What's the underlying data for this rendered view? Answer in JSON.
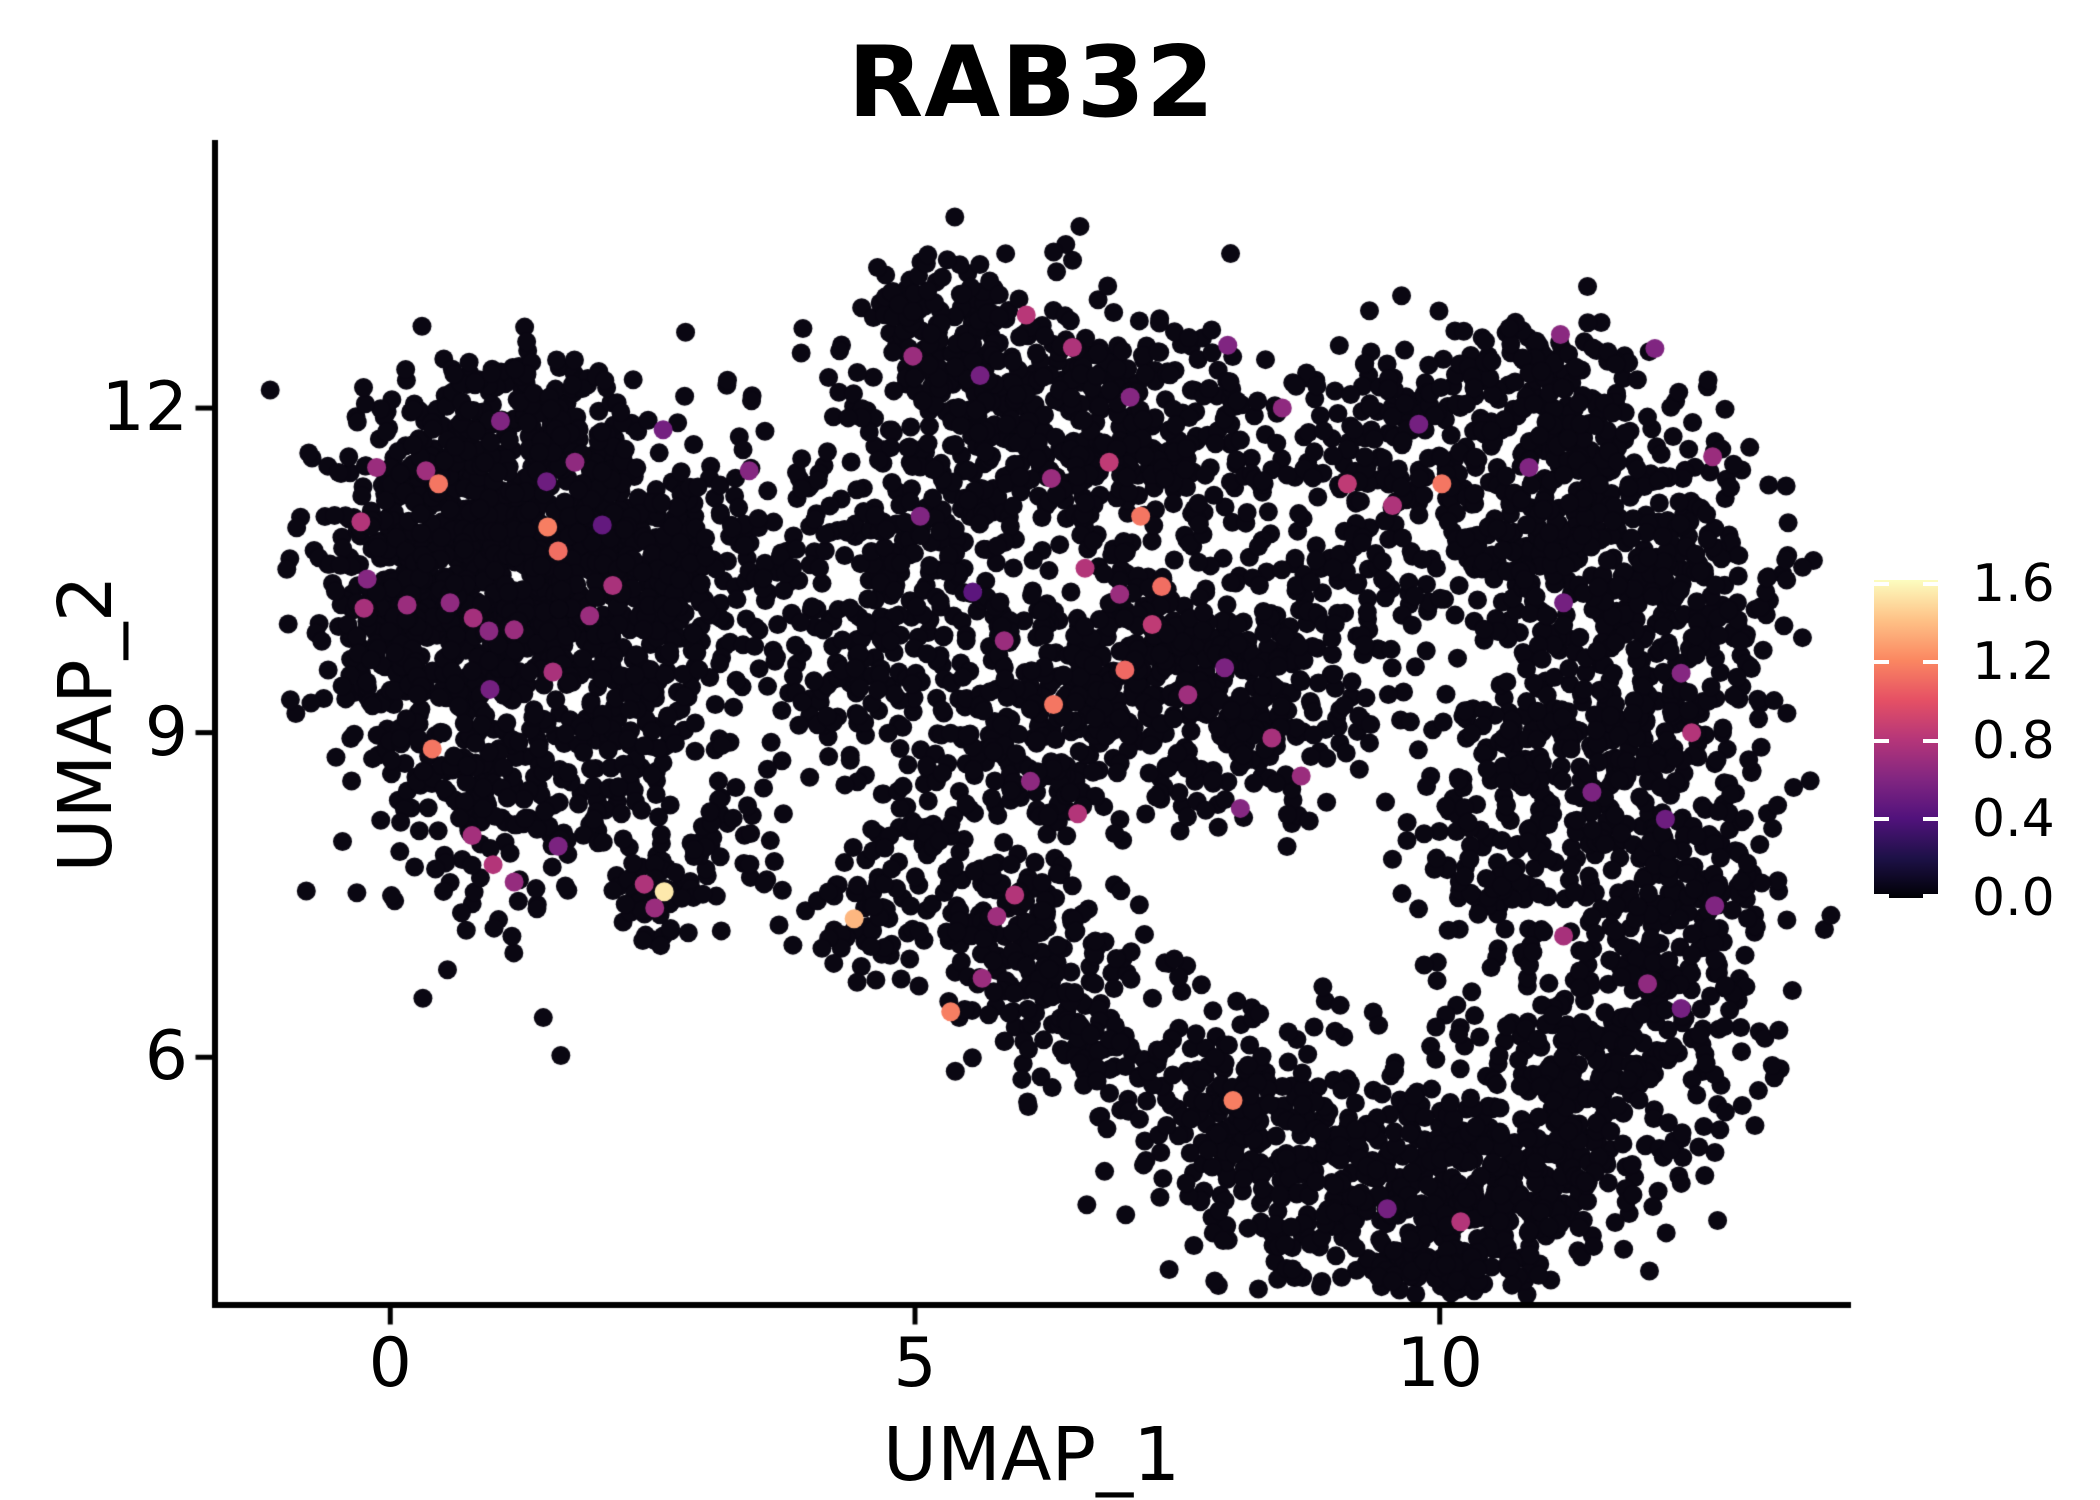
{
  "chart_data": {
    "type": "scatter",
    "title": "RAB32",
    "xlabel": "UMAP_1",
    "ylabel": "UMAP_2",
    "xlim": [
      -1.67,
      13.89
    ],
    "ylim": [
      3.71,
      14.45
    ],
    "xticks": [
      0,
      5,
      10
    ],
    "yticks": [
      6,
      9,
      12
    ],
    "grid": false,
    "legend_position": "right",
    "point_radius_px": 9.5,
    "zero_expression_color": "#0A0712",
    "axis_color": "#000000",
    "colorbar": {
      "tick_values": [
        0.0,
        0.4,
        0.8,
        1.2,
        1.6
      ],
      "tick_labels": [
        "0.0",
        "0.4",
        "0.8",
        "1.2",
        "1.6"
      ],
      "vmin": 0.0,
      "vmax": 1.62,
      "palette": "magma",
      "stops": [
        "#000004",
        "#1D1147",
        "#51127C",
        "#822681",
        "#B63679",
        "#E65164",
        "#FB8861",
        "#FEC287",
        "#FCFDBF"
      ]
    },
    "seed": 1337,
    "clusters_zero_expression": [
      [
        1.0,
        11.1,
        0.75,
        0.55,
        380
      ],
      [
        0.35,
        10.4,
        0.55,
        0.45,
        240
      ],
      [
        1.9,
        10.6,
        0.6,
        0.55,
        280
      ],
      [
        1.35,
        11.9,
        0.65,
        0.35,
        120
      ],
      [
        0.1,
        9.7,
        0.5,
        0.4,
        110
      ],
      [
        1.3,
        9.9,
        0.8,
        0.35,
        130
      ],
      [
        2.6,
        10.4,
        0.45,
        0.7,
        140
      ],
      [
        1.2,
        8.4,
        0.75,
        0.6,
        200
      ],
      [
        0.45,
        8.9,
        0.35,
        0.4,
        55
      ],
      [
        2.2,
        8.9,
        0.45,
        0.45,
        85
      ],
      [
        2.55,
        7.45,
        0.22,
        0.2,
        42
      ],
      [
        3.1,
        7.9,
        0.35,
        0.35,
        40
      ],
      [
        4.45,
        7.25,
        0.3,
        0.3,
        50
      ],
      [
        3.9,
        10.4,
        0.75,
        0.65,
        160
      ],
      [
        4.7,
        9.4,
        0.5,
        0.5,
        75
      ],
      [
        6.0,
        12.1,
        0.9,
        0.55,
        360
      ],
      [
        5.4,
        12.9,
        0.45,
        0.3,
        75
      ],
      [
        7.3,
        11.6,
        0.65,
        0.5,
        170
      ],
      [
        5.3,
        10.8,
        0.5,
        0.45,
        110
      ],
      [
        7.0,
        9.7,
        0.95,
        0.6,
        420
      ],
      [
        6.3,
        8.7,
        0.5,
        0.4,
        120
      ],
      [
        8.3,
        9.3,
        0.55,
        0.55,
        150
      ],
      [
        9.7,
        11.7,
        0.8,
        0.5,
        220
      ],
      [
        11.1,
        12.4,
        0.4,
        0.3,
        70
      ],
      [
        9.3,
        10.3,
        0.5,
        0.5,
        75
      ],
      [
        5.9,
        7.3,
        0.45,
        0.5,
        130
      ],
      [
        6.5,
        6.4,
        0.5,
        0.4,
        110
      ],
      [
        5.2,
        7.9,
        0.35,
        0.35,
        55
      ],
      [
        9.0,
        5.0,
        0.85,
        0.6,
        380
      ],
      [
        7.9,
        5.7,
        0.5,
        0.35,
        100
      ],
      [
        10.3,
        4.6,
        0.55,
        0.45,
        150
      ],
      [
        11.5,
        11.3,
        0.7,
        0.55,
        220
      ],
      [
        12.2,
        9.9,
        0.55,
        0.7,
        260
      ],
      [
        11.3,
        8.7,
        0.65,
        0.6,
        230
      ],
      [
        12.25,
        7.3,
        0.5,
        0.75,
        240
      ],
      [
        11.5,
        6.0,
        0.6,
        0.55,
        210
      ],
      [
        10.8,
        10.6,
        0.45,
        0.5,
        110
      ],
      [
        10.5,
        7.8,
        0.4,
        0.6,
        85
      ],
      [
        11.0,
        5.0,
        0.5,
        0.4,
        140
      ],
      [
        9.9,
        3.95,
        0.5,
        0.3,
        75
      ]
    ],
    "expressing_cells": [
      [
        -0.13,
        11.45,
        0.7
      ],
      [
        0.34,
        11.42,
        0.72
      ],
      [
        0.46,
        11.3,
        1.15
      ],
      [
        -0.28,
        10.95,
        0.8
      ],
      [
        -0.22,
        10.42,
        0.62
      ],
      [
        -0.25,
        10.15,
        0.75
      ],
      [
        0.16,
        10.18,
        0.7
      ],
      [
        0.57,
        10.2,
        0.66
      ],
      [
        0.79,
        10.06,
        0.74
      ],
      [
        1.5,
        10.9,
        1.18
      ],
      [
        1.6,
        10.68,
        1.12
      ],
      [
        1.76,
        11.5,
        0.66
      ],
      [
        1.49,
        11.32,
        0.52
      ],
      [
        1.05,
        11.88,
        0.6
      ],
      [
        2.02,
        10.92,
        0.48
      ],
      [
        2.12,
        10.36,
        0.76
      ],
      [
        1.9,
        10.08,
        0.7
      ],
      [
        1.18,
        9.95,
        0.7
      ],
      [
        0.94,
        9.94,
        0.64
      ],
      [
        1.55,
        9.56,
        0.76
      ],
      [
        0.4,
        8.85,
        1.15
      ],
      [
        0.95,
        9.4,
        0.55
      ],
      [
        2.6,
        11.8,
        0.55
      ],
      [
        0.78,
        8.05,
        0.74
      ],
      [
        0.98,
        7.78,
        0.8
      ],
      [
        1.18,
        7.62,
        0.68
      ],
      [
        1.6,
        7.95,
        0.58
      ],
      [
        2.42,
        7.6,
        0.78
      ],
      [
        2.61,
        7.53,
        1.55
      ],
      [
        2.52,
        7.38,
        0.7
      ],
      [
        4.42,
        7.28,
        1.38
      ],
      [
        5.34,
        6.42,
        1.18
      ],
      [
        5.64,
        6.73,
        0.7
      ],
      [
        5.95,
        7.5,
        0.8
      ],
      [
        5.78,
        7.3,
        0.72
      ],
      [
        3.42,
        11.42,
        0.62
      ],
      [
        4.98,
        12.48,
        0.7
      ],
      [
        6.06,
        12.86,
        0.82
      ],
      [
        6.5,
        12.56,
        0.78
      ],
      [
        5.62,
        12.3,
        0.55
      ],
      [
        7.05,
        12.1,
        0.62
      ],
      [
        6.85,
        11.5,
        0.85
      ],
      [
        6.3,
        11.35,
        0.7
      ],
      [
        7.15,
        11.0,
        1.15
      ],
      [
        5.05,
        11.0,
        0.6
      ],
      [
        6.62,
        10.52,
        0.8
      ],
      [
        6.95,
        10.28,
        0.7
      ],
      [
        7.35,
        10.35,
        1.12
      ],
      [
        7.26,
        10.0,
        0.85
      ],
      [
        7.0,
        9.58,
        1.1
      ],
      [
        6.32,
        9.26,
        1.15
      ],
      [
        6.55,
        8.25,
        0.8
      ],
      [
        6.1,
        8.55,
        0.65
      ],
      [
        7.6,
        9.35,
        0.72
      ],
      [
        7.95,
        9.6,
        0.58
      ],
      [
        8.4,
        8.95,
        0.75
      ],
      [
        8.68,
        8.6,
        0.7
      ],
      [
        8.1,
        8.3,
        0.62
      ],
      [
        5.85,
        9.85,
        0.7
      ],
      [
        5.55,
        10.3,
        0.45
      ],
      [
        8.5,
        12.0,
        0.66
      ],
      [
        7.98,
        12.58,
        0.6
      ],
      [
        9.12,
        11.3,
        0.85
      ],
      [
        9.55,
        11.1,
        0.78
      ],
      [
        10.02,
        11.3,
        1.15
      ],
      [
        11.15,
        12.68,
        0.64
      ],
      [
        12.05,
        12.55,
        0.6
      ],
      [
        9.8,
        11.85,
        0.55
      ],
      [
        10.85,
        11.45,
        0.6
      ],
      [
        12.6,
        11.55,
        0.7
      ],
      [
        11.18,
        10.2,
        0.55
      ],
      [
        12.3,
        9.55,
        0.62
      ],
      [
        12.4,
        9.0,
        0.8
      ],
      [
        11.18,
        7.12,
        0.75
      ],
      [
        11.98,
        6.68,
        0.66
      ],
      [
        12.3,
        6.45,
        0.55
      ],
      [
        12.62,
        7.4,
        0.6
      ],
      [
        11.45,
        8.45,
        0.58
      ],
      [
        12.15,
        8.2,
        0.52
      ],
      [
        8.03,
        5.6,
        1.18
      ],
      [
        10.2,
        4.48,
        0.8
      ],
      [
        9.5,
        4.6,
        0.55
      ]
    ]
  }
}
